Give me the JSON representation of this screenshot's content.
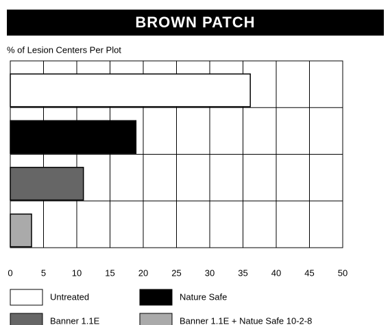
{
  "chart_data": {
    "type": "barh",
    "title": "BROWN PATCH",
    "subtitle": "% of Lesion Centers Per Plot",
    "categories": [
      "Untreated",
      "Nature Safe",
      "Banner 1.1E",
      "Banner 1.1E + Natue Safe 10-2-8"
    ],
    "values": [
      36.1,
      18.9,
      11.0,
      3.2
    ],
    "colors": [
      "#ffffff",
      "#000000",
      "#666666",
      "#aaaaaa"
    ],
    "xlim": [
      0,
      50
    ],
    "xticks": [
      0,
      5,
      10,
      15,
      20,
      25,
      30,
      35,
      40,
      45,
      50
    ],
    "grid": true
  }
}
